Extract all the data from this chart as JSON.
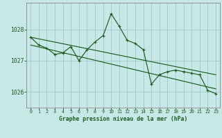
{
  "title": "Graphe pression niveau de la mer (hPa)",
  "bg_color": "#c8e8e8",
  "grid_color": "#a0c8c8",
  "line_color": "#1a5c1a",
  "x_ticks": [
    0,
    1,
    2,
    3,
    4,
    5,
    6,
    7,
    8,
    9,
    10,
    11,
    12,
    13,
    14,
    15,
    16,
    17,
    18,
    19,
    20,
    21,
    22,
    23
  ],
  "ylim": [
    1025.5,
    1028.85
  ],
  "yticks": [
    1026,
    1027,
    1028
  ],
  "main_y": [
    1027.75,
    1027.5,
    1027.4,
    1027.2,
    1027.25,
    1027.45,
    1027.0,
    1027.35,
    1027.6,
    1027.8,
    1028.5,
    1028.1,
    1027.65,
    1027.55,
    1027.35,
    1026.25,
    1026.55,
    1026.65,
    1026.7,
    1026.65,
    1026.6,
    1026.55,
    1026.05,
    1025.95
  ],
  "trend1_x": [
    0,
    23
  ],
  "trend1_y": [
    1027.75,
    1026.55
  ],
  "trend2_x": [
    0,
    23
  ],
  "trend2_y": [
    1027.5,
    1026.1
  ]
}
